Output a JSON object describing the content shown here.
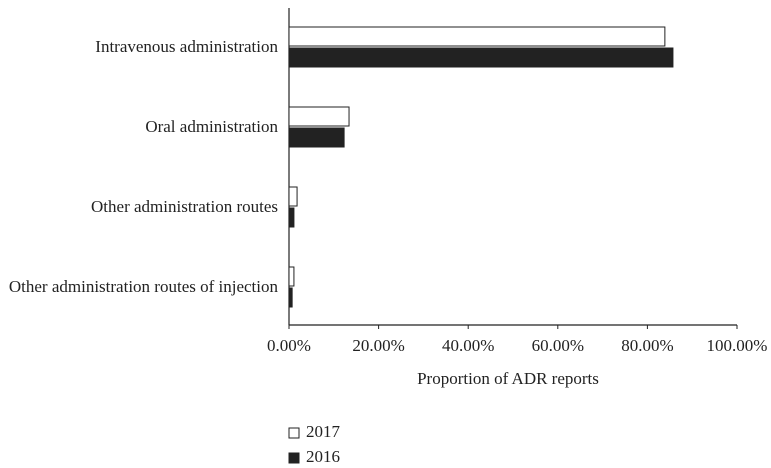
{
  "chart_data": {
    "type": "barh",
    "xlabel": "Proportion of ADR reports",
    "categories": [
      "Intravenous administration",
      "Oral administration",
      "Other administration routes",
      "Other administration routes of injection"
    ],
    "series": [
      {
        "name": "2017",
        "color": "#ffffff",
        "values": [
          83.9,
          13.4,
          1.8,
          1.1
        ]
      },
      {
        "name": "2016",
        "color": "#222222",
        "values": [
          85.7,
          12.3,
          1.1,
          0.7
        ]
      }
    ],
    "xlim": [
      0,
      100
    ],
    "xticks": [
      {
        "value": 0,
        "label": "0.00%"
      },
      {
        "value": 20,
        "label": "20.00%"
      },
      {
        "value": 40,
        "label": "40.00%"
      },
      {
        "value": 60,
        "label": "60.00%"
      },
      {
        "value": 80,
        "label": "80.00%"
      },
      {
        "value": 100,
        "label": "100.00%"
      }
    ],
    "legend": "bottom"
  }
}
